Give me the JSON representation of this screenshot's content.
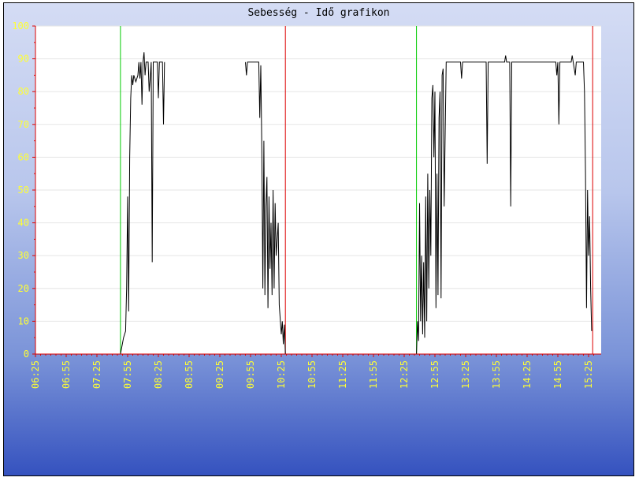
{
  "chart_data": {
    "type": "line",
    "title": "Sebesség - Idő grafikon",
    "xlabel": "",
    "ylabel": "",
    "ylim": [
      0,
      100
    ],
    "xlim": [
      "06:25",
      "15:30"
    ],
    "y_ticks": [
      "0",
      "10",
      "20",
      "30",
      "40",
      "50",
      "60",
      "70",
      "80",
      "90",
      "100"
    ],
    "x_ticks": [
      "06:25",
      "06:55",
      "07:25",
      "07:55",
      "08:25",
      "08:55",
      "09:25",
      "09:55",
      "10:25",
      "10:55",
      "11:25",
      "11:55",
      "12:25",
      "12:55",
      "13:25",
      "13:55",
      "14:25",
      "14:55",
      "15:25"
    ],
    "grid": true,
    "colors": {
      "line": "#000000",
      "start_marker": "#00cc00",
      "stop_marker": "#dd0000",
      "axis": "#dd0000",
      "tick_label": "#ffff33"
    },
    "markers": [
      {
        "kind": "start",
        "x": "07:48"
      },
      {
        "kind": "stop",
        "x": "10:29"
      },
      {
        "kind": "start",
        "x": "12:37"
      },
      {
        "kind": "stop",
        "x": "15:29"
      }
    ],
    "series": [
      {
        "values": [
          [
            "07:48",
            0
          ],
          [
            "07:51",
            5
          ],
          [
            "07:53",
            7
          ],
          [
            "07:54",
            20
          ],
          [
            "07:55",
            48
          ],
          [
            "07:56",
            13
          ],
          [
            "07:57",
            60
          ],
          [
            "07:58",
            78
          ],
          [
            "07:59",
            85
          ],
          [
            "08:00",
            82
          ],
          [
            "08:01",
            85
          ],
          [
            "08:03",
            83
          ],
          [
            "08:05",
            85
          ],
          [
            "08:06",
            89
          ],
          [
            "08:07",
            84
          ],
          [
            "08:08",
            89
          ],
          [
            "08:09",
            76
          ],
          [
            "08:10",
            89
          ],
          [
            "08:11",
            92
          ],
          [
            "08:12",
            85
          ],
          [
            "08:13",
            89
          ],
          [
            "08:15",
            89
          ],
          [
            "08:16",
            80
          ],
          [
            "08:17",
            84
          ],
          [
            "08:18",
            89
          ],
          [
            "08:19",
            28
          ],
          [
            "08:20",
            89
          ],
          [
            "08:24",
            89
          ],
          [
            "08:25",
            78
          ],
          [
            "08:26",
            89
          ],
          [
            "08:29",
            89
          ],
          [
            "08:30",
            70
          ],
          [
            "08:31",
            89
          ],
          [
            "09:50",
            89
          ],
          [
            "09:51",
            85
          ],
          [
            "09:52",
            89
          ],
          [
            "10:03",
            89
          ],
          [
            "10:04",
            72
          ],
          [
            "10:05",
            88
          ],
          [
            "10:06",
            62
          ],
          [
            "10:07",
            20
          ],
          [
            "10:08",
            65
          ],
          [
            "10:09",
            18
          ],
          [
            "10:10",
            45
          ],
          [
            "10:11",
            54
          ],
          [
            "10:12",
            14
          ],
          [
            "10:13",
            48
          ],
          [
            "10:14",
            26
          ],
          [
            "10:15",
            40
          ],
          [
            "10:16",
            18
          ],
          [
            "10:17",
            50
          ],
          [
            "10:18",
            20
          ],
          [
            "10:19",
            46
          ],
          [
            "10:20",
            30
          ],
          [
            "10:22",
            40
          ],
          [
            "10:23",
            15
          ],
          [
            "10:25",
            6
          ],
          [
            "10:26",
            10
          ],
          [
            "10:27",
            3
          ],
          [
            "10:28",
            9
          ],
          [
            "10:29",
            0
          ],
          [
            "12:37",
            0
          ],
          [
            "12:38",
            10
          ],
          [
            "12:39",
            4
          ],
          [
            "12:40",
            46
          ],
          [
            "12:41",
            10
          ],
          [
            "12:42",
            30
          ],
          [
            "12:43",
            6
          ],
          [
            "12:44",
            28
          ],
          [
            "12:45",
            5
          ],
          [
            "12:46",
            48
          ],
          [
            "12:47",
            10
          ],
          [
            "12:48",
            55
          ],
          [
            "12:49",
            20
          ],
          [
            "12:50",
            50
          ],
          [
            "12:51",
            30
          ],
          [
            "12:52",
            78
          ],
          [
            "12:53",
            82
          ],
          [
            "12:54",
            60
          ],
          [
            "12:55",
            80
          ],
          [
            "12:56",
            14
          ],
          [
            "12:57",
            55
          ],
          [
            "12:58",
            18
          ],
          [
            "12:59",
            72
          ],
          [
            "13:00",
            80
          ],
          [
            "13:01",
            17
          ],
          [
            "13:02",
            85
          ],
          [
            "13:03",
            87
          ],
          [
            "13:04",
            45
          ],
          [
            "13:05",
            67
          ],
          [
            "13:06",
            89
          ],
          [
            "13:20",
            89
          ],
          [
            "13:21",
            84
          ],
          [
            "13:22",
            89
          ],
          [
            "13:45",
            89
          ],
          [
            "13:46",
            58
          ],
          [
            "13:47",
            89
          ],
          [
            "14:03",
            89
          ],
          [
            "14:04",
            91
          ],
          [
            "14:05",
            89
          ],
          [
            "14:08",
            89
          ],
          [
            "14:09",
            45
          ],
          [
            "14:10",
            89
          ],
          [
            "14:53",
            89
          ],
          [
            "14:54",
            85
          ],
          [
            "14:55",
            89
          ],
          [
            "14:56",
            70
          ],
          [
            "14:57",
            89
          ],
          [
            "15:08",
            89
          ],
          [
            "15:09",
            91
          ],
          [
            "15:10",
            89
          ],
          [
            "15:12",
            85
          ],
          [
            "15:13",
            89
          ],
          [
            "15:20",
            89
          ],
          [
            "15:21",
            80
          ],
          [
            "15:22",
            55
          ],
          [
            "15:23",
            14
          ],
          [
            "15:24",
            50
          ],
          [
            "15:25",
            30
          ],
          [
            "15:26",
            42
          ],
          [
            "15:27",
            20
          ],
          [
            "15:28",
            7
          ]
        ]
      }
    ]
  }
}
